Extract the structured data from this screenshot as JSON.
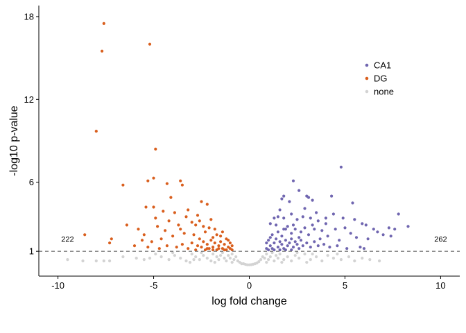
{
  "chart_data": {
    "type": "scatter",
    "title": "",
    "xlabel": "log fold change",
    "ylabel": "-log10 p-value",
    "xlim": [
      -11,
      11
    ],
    "ylim": [
      -0.8,
      18.8
    ],
    "xticks": [
      -10,
      -5,
      0,
      5,
      10
    ],
    "xtick_labels": [
      "-10",
      "-5",
      "0",
      "5",
      "10"
    ],
    "yticks": [
      1,
      6,
      12,
      18
    ],
    "ytick_labels": [
      "1",
      "6",
      "12",
      "18"
    ],
    "threshold_y": 1,
    "threshold_style": "dashed",
    "grid": false,
    "legend_position": "top-right",
    "annotations": [
      {
        "text": "222",
        "x": -9.5,
        "y": 1.9
      },
      {
        "text": "262",
        "x": 10,
        "y": 1.9
      }
    ],
    "series": [
      {
        "name": "CA1",
        "color": "#7066b0",
        "points": [
          [
            4.8,
            7.1
          ],
          [
            2.3,
            6.1
          ],
          [
            2.6,
            5.4
          ],
          [
            1.7,
            4.8
          ],
          [
            1.8,
            5.0
          ],
          [
            2.1,
            4.6
          ],
          [
            3.1,
            4.9
          ],
          [
            3.3,
            4.7
          ],
          [
            3.0,
            5.0
          ],
          [
            4.3,
            5.0
          ],
          [
            5.4,
            4.5
          ],
          [
            1.3,
            3.4
          ],
          [
            1.5,
            3.5
          ],
          [
            1.8,
            3.4
          ],
          [
            2.2,
            3.7
          ],
          [
            2.5,
            3.3
          ],
          [
            2.8,
            3.5
          ],
          [
            3.2,
            3.4
          ],
          [
            3.6,
            3.2
          ],
          [
            4.0,
            3.0
          ],
          [
            1.1,
            3.0
          ],
          [
            1.4,
            2.9
          ],
          [
            2.0,
            2.8
          ],
          [
            2.4,
            2.6
          ],
          [
            2.9,
            2.7
          ],
          [
            3.4,
            2.6
          ],
          [
            3.8,
            2.5
          ],
          [
            4.5,
            2.6
          ],
          [
            5.0,
            2.7
          ],
          [
            5.9,
            3.0
          ],
          [
            6.1,
            2.9
          ],
          [
            5.5,
            3.3
          ],
          [
            4.9,
            3.4
          ],
          [
            7.3,
            2.7
          ],
          [
            7.6,
            2.6
          ],
          [
            7.8,
            3.7
          ],
          [
            8.3,
            2.8
          ],
          [
            6.7,
            2.4
          ],
          [
            7.0,
            2.2
          ],
          [
            7.4,
            2.1
          ],
          [
            6.2,
            1.9
          ],
          [
            5.6,
            2.0
          ],
          [
            4.7,
            1.8
          ],
          [
            4.1,
            2.1
          ],
          [
            3.7,
            1.9
          ],
          [
            3.1,
            2.2
          ],
          [
            2.6,
            2.0
          ],
          [
            2.2,
            2.3
          ],
          [
            1.7,
            2.1
          ],
          [
            1.2,
            2.2
          ],
          [
            0.9,
            1.6
          ],
          [
            1.0,
            1.8
          ],
          [
            1.1,
            1.4
          ],
          [
            1.2,
            1.2
          ],
          [
            1.3,
            1.6
          ],
          [
            1.4,
            1.9
          ],
          [
            1.5,
            1.3
          ],
          [
            1.6,
            1.7
          ],
          [
            1.7,
            1.5
          ],
          [
            1.8,
            1.2
          ],
          [
            1.9,
            1.8
          ],
          [
            2.0,
            1.4
          ],
          [
            2.1,
            1.6
          ],
          [
            2.2,
            1.9
          ],
          [
            2.3,
            1.3
          ],
          [
            2.4,
            1.7
          ],
          [
            2.5,
            1.5
          ],
          [
            2.6,
            1.2
          ],
          [
            2.7,
            1.8
          ],
          [
            2.8,
            1.4
          ],
          [
            3.0,
            1.6
          ],
          [
            3.2,
            1.3
          ],
          [
            3.4,
            1.7
          ],
          [
            3.6,
            1.4
          ],
          [
            3.9,
            1.5
          ],
          [
            4.2,
            1.3
          ],
          [
            4.6,
            1.4
          ],
          [
            5.1,
            1.2
          ],
          [
            5.8,
            1.3
          ],
          [
            6.0,
            1.2
          ],
          [
            1.0,
            1.1
          ],
          [
            1.3,
            1.1
          ],
          [
            1.6,
            1.1
          ],
          [
            1.9,
            1.1
          ],
          [
            2.2,
            1.1
          ],
          [
            0.9,
            1.2
          ],
          [
            1.1,
            2.0
          ],
          [
            1.5,
            2.4
          ],
          [
            1.9,
            2.6
          ],
          [
            2.3,
            2.9
          ],
          [
            4.4,
            3.7
          ],
          [
            3.5,
            3.8
          ],
          [
            2.9,
            4.1
          ],
          [
            1.6,
            4.0
          ],
          [
            6.5,
            2.6
          ],
          [
            5.3,
            2.3
          ],
          [
            4.0,
            3.4
          ],
          [
            3.3,
            2.9
          ],
          [
            2.7,
            2.4
          ],
          [
            1.8,
            2.6
          ]
        ]
      },
      {
        "name": "DG",
        "color": "#d95f1e",
        "points": [
          [
            -7.6,
            17.5
          ],
          [
            -7.7,
            15.5
          ],
          [
            -5.2,
            16.0
          ],
          [
            -8.0,
            9.7
          ],
          [
            -4.9,
            8.4
          ],
          [
            -6.6,
            5.8
          ],
          [
            -5.0,
            6.3
          ],
          [
            -5.3,
            6.1
          ],
          [
            -4.3,
            5.9
          ],
          [
            -3.6,
            6.1
          ],
          [
            -3.5,
            5.8
          ],
          [
            -4.1,
            4.9
          ],
          [
            -2.5,
            4.6
          ],
          [
            -2.2,
            4.4
          ],
          [
            -5.4,
            4.2
          ],
          [
            -5.0,
            4.2
          ],
          [
            -4.5,
            3.9
          ],
          [
            -3.9,
            3.8
          ],
          [
            -3.2,
            4.0
          ],
          [
            -2.7,
            3.6
          ],
          [
            -2.0,
            3.3
          ],
          [
            -6.4,
            2.9
          ],
          [
            -5.8,
            2.6
          ],
          [
            -4.8,
            2.8
          ],
          [
            -4.2,
            3.2
          ],
          [
            -3.7,
            2.9
          ],
          [
            -3.0,
            3.1
          ],
          [
            -2.4,
            2.8
          ],
          [
            -1.8,
            2.6
          ],
          [
            -7.2,
            1.9
          ],
          [
            -8.6,
            2.2
          ],
          [
            -5.6,
            1.8
          ],
          [
            -5.1,
            1.7
          ],
          [
            -4.6,
            1.9
          ],
          [
            -4.0,
            2.1
          ],
          [
            -3.4,
            2.3
          ],
          [
            -2.9,
            2.2
          ],
          [
            -2.3,
            2.4
          ],
          [
            -1.9,
            2.0
          ],
          [
            -1.5,
            2.1
          ],
          [
            -1.2,
            1.9
          ],
          [
            -1.0,
            1.6
          ],
          [
            -1.1,
            1.3
          ],
          [
            -1.2,
            1.1
          ],
          [
            -1.3,
            1.5
          ],
          [
            -1.4,
            1.2
          ],
          [
            -1.5,
            1.7
          ],
          [
            -1.6,
            1.4
          ],
          [
            -1.7,
            1.1
          ],
          [
            -1.8,
            1.6
          ],
          [
            -1.9,
            1.3
          ],
          [
            -2.0,
            1.8
          ],
          [
            -2.1,
            1.2
          ],
          [
            -2.2,
            1.5
          ],
          [
            -2.3,
            1.1
          ],
          [
            -2.4,
            1.7
          ],
          [
            -2.5,
            1.3
          ],
          [
            -2.6,
            1.9
          ],
          [
            -2.7,
            1.4
          ],
          [
            -2.8,
            1.1
          ],
          [
            -3.0,
            1.6
          ],
          [
            -3.2,
            1.2
          ],
          [
            -3.5,
            1.5
          ],
          [
            -3.8,
            1.3
          ],
          [
            -4.3,
            1.4
          ],
          [
            -4.7,
            1.2
          ],
          [
            -5.3,
            1.3
          ],
          [
            -6.0,
            1.4
          ],
          [
            -7.3,
            1.6
          ],
          [
            -0.9,
            1.1
          ],
          [
            -1.0,
            1.2
          ],
          [
            -1.3,
            1.1
          ],
          [
            -1.6,
            1.2
          ],
          [
            -1.9,
            1.1
          ],
          [
            -2.2,
            1.2
          ],
          [
            -0.9,
            1.4
          ],
          [
            -1.1,
            1.8
          ],
          [
            -1.4,
            2.4
          ],
          [
            -1.7,
            2.2
          ],
          [
            -2.1,
            2.7
          ],
          [
            -2.6,
            3.2
          ],
          [
            -3.3,
            3.5
          ],
          [
            -4.4,
            2.5
          ],
          [
            -5.5,
            2.2
          ],
          [
            -3.6,
            2.6
          ],
          [
            -2.8,
            2.9
          ],
          [
            -4.9,
            3.4
          ]
        ]
      },
      {
        "name": "none",
        "color": "#d3d3d3",
        "points": [
          [
            -9.5,
            0.4
          ],
          [
            -8.7,
            0.3
          ],
          [
            -8.0,
            0.3
          ],
          [
            -7.6,
            0.3
          ],
          [
            -7.3,
            0.3
          ],
          [
            -6.6,
            0.6
          ],
          [
            -5.5,
            0.4
          ],
          [
            -5.2,
            0.5
          ],
          [
            -4.9,
            0.8
          ],
          [
            -4.6,
            0.6
          ],
          [
            -4.2,
            0.4
          ],
          [
            -3.9,
            0.7
          ],
          [
            -3.6,
            0.5
          ],
          [
            -3.3,
            0.3
          ],
          [
            -3.0,
            0.8
          ],
          [
            -2.8,
            0.6
          ],
          [
            -2.6,
            0.4
          ],
          [
            -2.4,
            0.7
          ],
          [
            -2.2,
            0.5
          ],
          [
            -2.0,
            0.3
          ],
          [
            -1.9,
            0.8
          ],
          [
            -1.7,
            0.6
          ],
          [
            -1.6,
            0.4
          ],
          [
            -1.5,
            0.7
          ],
          [
            -1.4,
            0.9
          ],
          [
            -1.3,
            0.5
          ],
          [
            -1.2,
            0.3
          ],
          [
            -1.1,
            0.7
          ],
          [
            -1.0,
            0.5
          ],
          [
            -0.9,
            0.8
          ],
          [
            -0.8,
            0.4
          ],
          [
            -0.7,
            0.6
          ],
          [
            -0.6,
            0.3
          ],
          [
            -0.5,
            0.2
          ],
          [
            -0.4,
            0.1
          ],
          [
            -0.3,
            0.1
          ],
          [
            -0.2,
            0.05
          ],
          [
            -0.1,
            0.02
          ],
          [
            0.0,
            0.02
          ],
          [
            0.1,
            0.03
          ],
          [
            0.2,
            0.06
          ],
          [
            0.3,
            0.1
          ],
          [
            0.4,
            0.15
          ],
          [
            0.5,
            0.25
          ],
          [
            0.6,
            0.4
          ],
          [
            0.7,
            0.6
          ],
          [
            0.8,
            0.5
          ],
          [
            0.9,
            0.8
          ],
          [
            1.0,
            0.4
          ],
          [
            1.1,
            0.6
          ],
          [
            1.2,
            0.9
          ],
          [
            1.3,
            0.3
          ],
          [
            1.4,
            0.7
          ],
          [
            1.5,
            0.5
          ],
          [
            1.6,
            0.8
          ],
          [
            1.8,
            0.4
          ],
          [
            2.0,
            0.6
          ],
          [
            2.2,
            0.3
          ],
          [
            2.4,
            0.7
          ],
          [
            2.6,
            0.5
          ],
          [
            2.9,
            0.8
          ],
          [
            3.2,
            0.4
          ],
          [
            3.5,
            0.6
          ],
          [
            3.8,
            0.3
          ],
          [
            4.1,
            0.7
          ],
          [
            4.4,
            0.5
          ],
          [
            4.8,
            0.4
          ],
          [
            5.2,
            0.6
          ],
          [
            5.5,
            0.3
          ],
          [
            5.9,
            0.5
          ],
          [
            6.3,
            0.4
          ],
          [
            6.8,
            0.3
          ],
          [
            -4.0,
            0.9
          ],
          [
            -3.1,
            0.2
          ],
          [
            -2.5,
            0.9
          ],
          [
            -1.8,
            0.2
          ],
          [
            -0.9,
            0.2
          ],
          [
            0.9,
            0.2
          ],
          [
            1.7,
            0.2
          ],
          [
            2.5,
            0.9
          ],
          [
            3.3,
            0.8
          ],
          [
            4.6,
            0.8
          ],
          [
            -5.9,
            0.5
          ],
          [
            -2.9,
            0.4
          ],
          [
            3.0,
            0.2
          ]
        ]
      }
    ]
  }
}
